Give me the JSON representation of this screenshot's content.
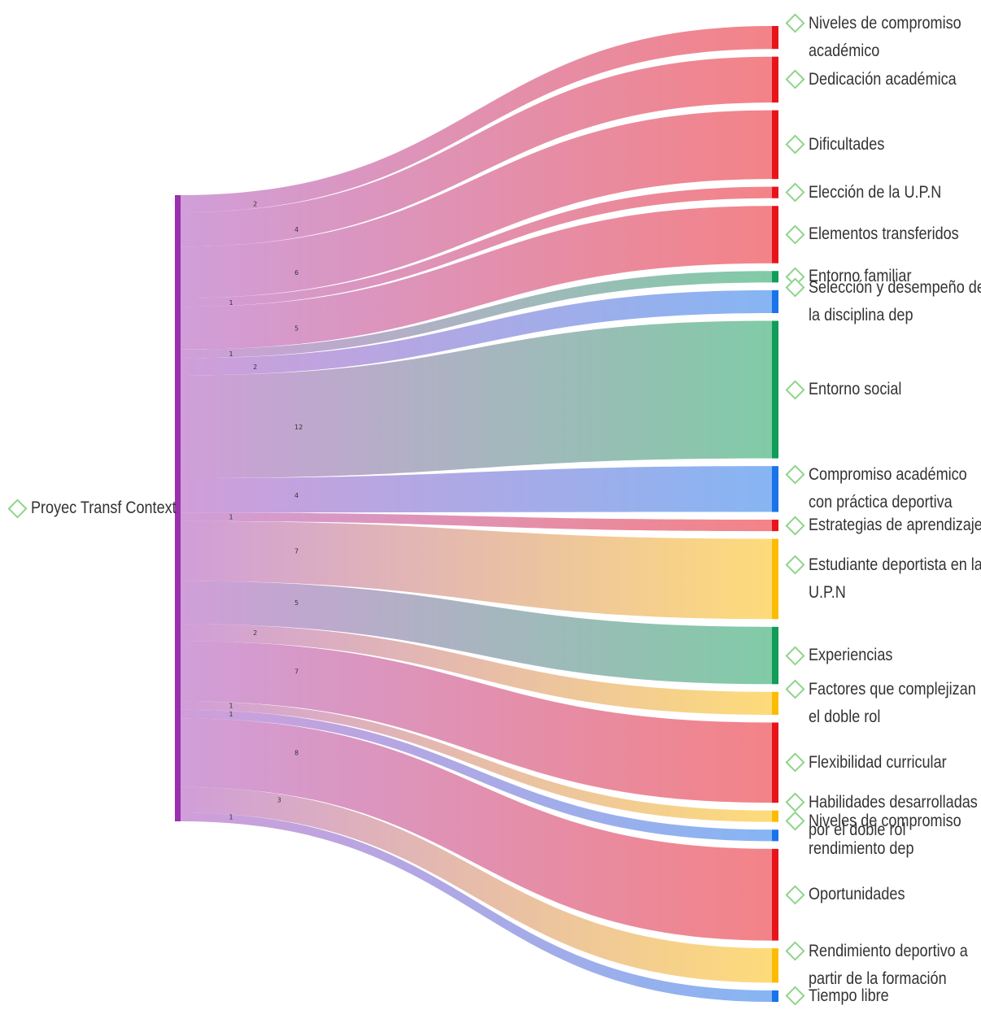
{
  "source": {
    "label": "Proyec Transf Context",
    "color": "#9b2fae"
  },
  "targets": [
    {
      "lines": [
        "Niveles de compromiso",
        "académico"
      ],
      "value": 2,
      "color": "#e8141b"
    },
    {
      "lines": [
        "Dedicación académica"
      ],
      "value": 4,
      "color": "#e8141b"
    },
    {
      "lines": [
        "Dificultades"
      ],
      "value": 6,
      "color": "#e8141b"
    },
    {
      "lines": [
        "Elección de la U.P.N"
      ],
      "value": 1,
      "color": "#e8141b"
    },
    {
      "lines": [
        "Elementos transferidos"
      ],
      "value": 5,
      "color": "#e8141b"
    },
    {
      "lines": [
        "Entorno familiar"
      ],
      "value": 1,
      "color": "#0f9d58"
    },
    {
      "lines": [
        "Selección y desempeño de",
        "la disciplina dep"
      ],
      "value": 2,
      "color": "#1a73e8"
    },
    {
      "lines": [
        "Entorno social"
      ],
      "value": 12,
      "color": "#0f9d58"
    },
    {
      "lines": [
        "Compromiso académico",
        "con práctica deportiva"
      ],
      "value": 4,
      "color": "#1a73e8"
    },
    {
      "lines": [
        "Estrategias de aprendizaje"
      ],
      "value": 1,
      "color": "#e8141b"
    },
    {
      "lines": [
        "Estudiante deportista en la",
        "U.P.N"
      ],
      "value": 7,
      "color": "#fbbc04"
    },
    {
      "lines": [
        "Experiencias"
      ],
      "value": 5,
      "color": "#0f9d58"
    },
    {
      "lines": [
        "Factores que complejizan",
        "el doble rol"
      ],
      "value": 2,
      "color": "#fbbc04"
    },
    {
      "lines": [
        "Flexibilidad curricular"
      ],
      "value": 7,
      "color": "#e8141b"
    },
    {
      "lines": [
        "Habilidades desarrolladas",
        "por el doble rol"
      ],
      "value": 1,
      "color": "#fbbc04"
    },
    {
      "lines": [
        "Niveles de compromiso",
        "rendimiento dep"
      ],
      "value": 1,
      "color": "#1a73e8"
    },
    {
      "lines": [
        "Oportunidades"
      ],
      "value": 8,
      "color": "#e8141b"
    },
    {
      "lines": [
        "Rendimiento deportivo a",
        "partir de la formación"
      ],
      "value": 3,
      "color": "#fbbc04"
    },
    {
      "lines": [
        "Tiempo libre"
      ],
      "value": 1,
      "color": "#1a73e8"
    }
  ]
}
